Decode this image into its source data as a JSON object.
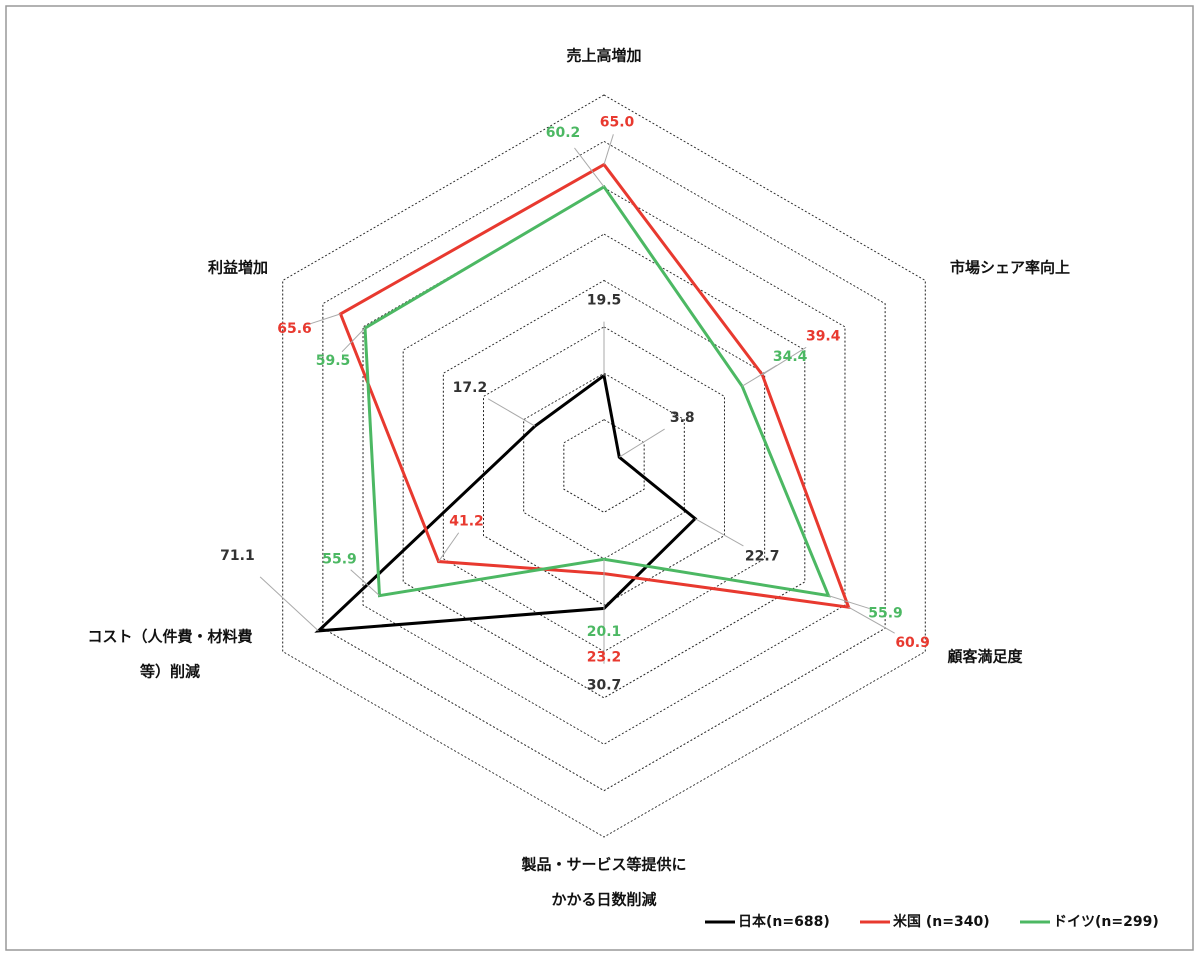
{
  "chart_data": {
    "type": "radar",
    "categories": [
      [
        "売上高増加"
      ],
      [
        "市場シェア率向上"
      ],
      [
        "顧客満足度"
      ],
      [
        "製品・サービス等提供に",
        "かかる日数削減"
      ],
      [
        "コスト（人件費・材料費",
        "等）削減"
      ],
      [
        "利益増加"
      ]
    ],
    "rlim": [
      0,
      80
    ],
    "rticks": [
      10,
      20,
      30,
      40,
      50,
      60,
      70,
      80
    ],
    "grid": true,
    "legend": "bottom-right",
    "series": [
      {
        "name": "日本(n=688)",
        "color": "#000000",
        "values": [
          19.5,
          3.8,
          22.7,
          30.7,
          71.1,
          17.2
        ],
        "value_labels": [
          "19.5",
          "3.8",
          "22.7",
          "30.7",
          "71.1",
          "17.2"
        ]
      },
      {
        "name": "米国 (n=340)",
        "color": "#e8392f",
        "values": [
          65.0,
          39.4,
          60.9,
          23.2,
          41.2,
          65.6
        ],
        "value_labels": [
          "65.0",
          "39.4",
          "60.9",
          "23.2",
          "41.2",
          "65.6"
        ]
      },
      {
        "name": "ドイツ(n=299)",
        "color": "#4cb863",
        "values": [
          60.2,
          34.4,
          55.9,
          20.1,
          55.9,
          59.5
        ],
        "value_labels": [
          "60.2",
          "34.4",
          "55.9",
          "20.1",
          "55.9",
          "59.5"
        ]
      }
    ]
  }
}
